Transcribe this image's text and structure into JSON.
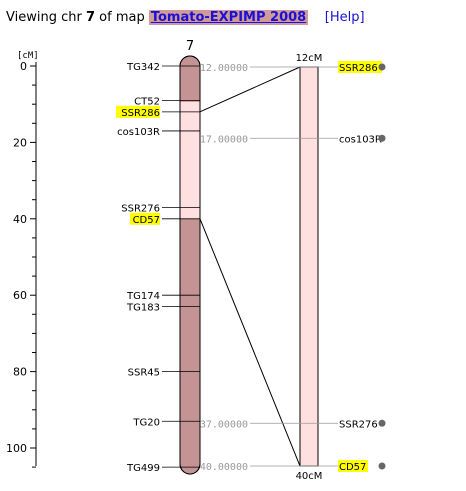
{
  "header": {
    "prefix": "Viewing chr",
    "chr": "7",
    "middle": "of map",
    "map_name": "Tomato-EXPIMP 2008",
    "help_open": "[",
    "help": "Help",
    "help_close": "]"
  },
  "ruler": {
    "unit": "[cM]",
    "ticks": [
      {
        "value": 0,
        "label": "0"
      },
      {
        "value": 20,
        "label": "20"
      },
      {
        "value": 40,
        "label": "40"
      },
      {
        "value": 60,
        "label": "60"
      },
      {
        "value": 80,
        "label": "80"
      },
      {
        "value": 100,
        "label": "100"
      }
    ]
  },
  "chromosome": {
    "name": "7",
    "markers": [
      {
        "name": "TG342",
        "pos": 0,
        "highlight": false
      },
      {
        "name": "CT52",
        "pos": 9,
        "highlight": false
      },
      {
        "name": "SSR286",
        "pos": 12,
        "highlight": true
      },
      {
        "name": "cos103R",
        "pos": 17,
        "highlight": false
      },
      {
        "name": "SSR276",
        "pos": 37,
        "highlight": false
      },
      {
        "name": "CD57",
        "pos": 40,
        "highlight": true
      },
      {
        "name": "TG174",
        "pos": 60,
        "highlight": false
      },
      {
        "name": "TG183",
        "pos": 63,
        "highlight": false
      },
      {
        "name": "SSR45",
        "pos": 80,
        "highlight": false
      },
      {
        "name": "TG20",
        "pos": 93,
        "highlight": false
      },
      {
        "name": "TG499",
        "pos": 105,
        "highlight": false
      }
    ]
  },
  "zoom": {
    "top_label": "12cM",
    "bottom_label": "40cM",
    "range": [
      12,
      40
    ],
    "markers": [
      {
        "name": "SSR286",
        "pos_label": "12.00000",
        "pos": 12,
        "highlight": true
      },
      {
        "name": "cos103R",
        "pos_label": "17.00000",
        "pos": 17,
        "highlight": false
      },
      {
        "name": "SSR276",
        "pos_label": "37.00000",
        "pos": 37,
        "highlight": false
      },
      {
        "name": "CD57",
        "pos_label": "40.00000",
        "pos": 40,
        "highlight": true
      }
    ]
  },
  "colors": {
    "chromosome_dark": "#c49393",
    "chromosome_light": "#ffe0e0",
    "highlight": "#ffff00",
    "link": "#1a10d8",
    "dot": "#666666"
  }
}
